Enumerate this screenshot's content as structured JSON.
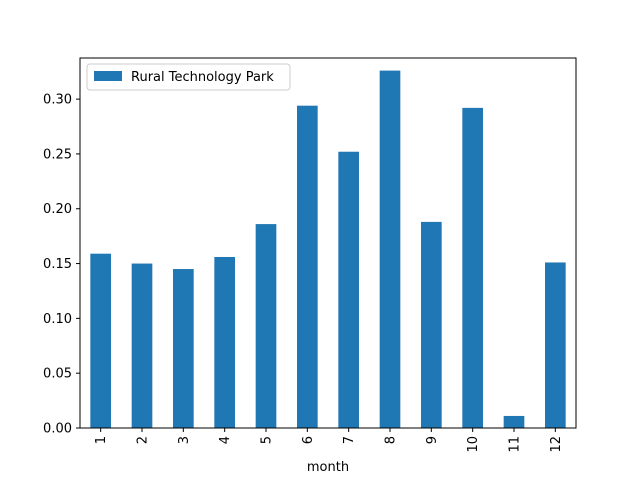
{
  "chart_data": {
    "type": "bar",
    "categories": [
      "1",
      "2",
      "3",
      "4",
      "5",
      "6",
      "7",
      "8",
      "9",
      "10",
      "11",
      "12"
    ],
    "series": [
      {
        "name": "Rural Technology Park",
        "values": [
          0.159,
          0.15,
          0.145,
          0.156,
          0.186,
          0.294,
          0.252,
          0.326,
          0.188,
          0.292,
          0.011,
          0.151
        ]
      }
    ],
    "xlabel": "month",
    "ylabel": "",
    "ylim": [
      0,
      0.3375
    ],
    "yticks": [
      0.0,
      0.05,
      0.1,
      0.15,
      0.2,
      0.25,
      0.3
    ],
    "ytick_labels": [
      "0.00",
      "0.05",
      "0.10",
      "0.15",
      "0.20",
      "0.25",
      "0.30"
    ],
    "legend_position": "top-left",
    "grid": false,
    "colors": {
      "bar": "#1f77b4"
    }
  }
}
